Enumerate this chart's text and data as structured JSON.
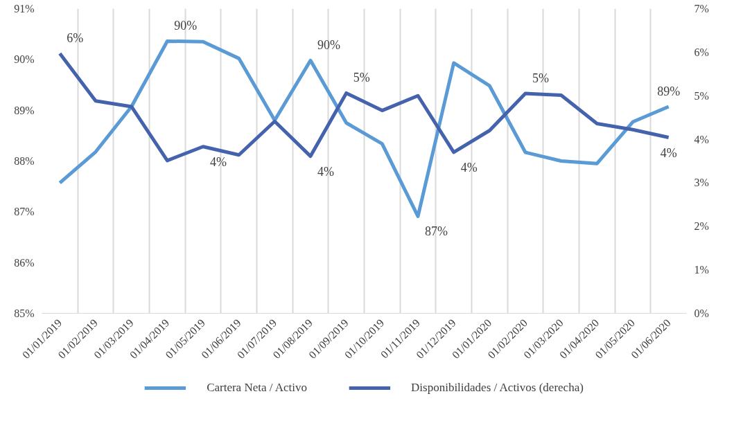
{
  "chart_data": {
    "type": "line",
    "categories": [
      "01/01/2019",
      "01/02/2019",
      "01/03/2019",
      "01/04/2019",
      "01/05/2019",
      "01/06/2019",
      "01/07/2019",
      "01/08/2019",
      "01/09/2019",
      "01/10/2019",
      "01/11/2019",
      "01/12/2019",
      "01/01/2020",
      "01/02/2020",
      "01/03/2020",
      "01/04/2020",
      "01/05/2020",
      "01/06/2020"
    ],
    "series": [
      {
        "name": "Cartera Neta / Activo",
        "color": "#5b9bd5",
        "values": [
          87.57,
          88.18,
          89.07,
          90.36,
          90.35,
          90.02,
          88.8,
          89.98,
          88.75,
          88.34,
          86.91,
          89.93,
          89.48,
          88.17,
          88.0,
          87.95,
          88.77,
          89.07
        ],
        "value_labels": [
          null,
          null,
          null,
          "90%",
          null,
          null,
          null,
          "90%",
          null,
          null,
          "87%",
          null,
          null,
          null,
          null,
          null,
          null,
          "89%"
        ]
      },
      {
        "name": "Disponibilidades / Activos (derecha)",
        "color": "#4563ad",
        "axis": "y2",
        "values": [
          5.97,
          4.88,
          4.75,
          3.51,
          3.83,
          3.64,
          4.41,
          3.61,
          5.06,
          4.66,
          5.0,
          3.7,
          4.2,
          5.05,
          5.01,
          4.36,
          4.22,
          4.04
        ],
        "value_labels": [
          "6%",
          null,
          null,
          null,
          "4%",
          null,
          null,
          "4%",
          "5%",
          null,
          null,
          "4%",
          null,
          "5%",
          null,
          null,
          null,
          "4%"
        ]
      }
    ],
    "ylim": [
      85,
      91
    ],
    "yticks": [
      {
        "value": 85,
        "label": "85%"
      },
      {
        "value": 86,
        "label": "86%"
      },
      {
        "value": 87,
        "label": "87%"
      },
      {
        "value": 88,
        "label": "88%"
      },
      {
        "value": 89,
        "label": "89%"
      },
      {
        "value": 90,
        "label": "90%"
      },
      {
        "value": 91,
        "label": "91%"
      }
    ],
    "y2lim": [
      0,
      7
    ],
    "y2ticks": [
      {
        "value": 0,
        "label": "0%"
      },
      {
        "value": 1,
        "label": "1%"
      },
      {
        "value": 2,
        "label": "2%"
      },
      {
        "value": 3,
        "label": "3%"
      },
      {
        "value": 4,
        "label": "4%"
      },
      {
        "value": 5,
        "label": "5%"
      },
      {
        "value": 6,
        "label": "6%"
      },
      {
        "value": 7,
        "label": "7%"
      }
    ],
    "grid": "x",
    "legend": "bottom"
  }
}
